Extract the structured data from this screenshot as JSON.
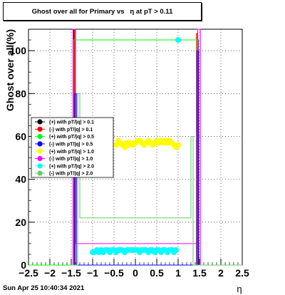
{
  "title": "Ghost over all for Primary vs   η at pT > 0.11",
  "timestamp": "Sun Apr 25 10:40:34 2021",
  "chart_data": {
    "type": "scatter",
    "xlabel": "η",
    "ylabel": "Ghost over all(%)",
    "xlim": [
      -2.5,
      2.5
    ],
    "ylim": [
      0,
      110
    ],
    "xticks": [
      "−2.5",
      "−2",
      "−1.5",
      "−1",
      "−0.5",
      "0",
      "0.5",
      "1",
      "1.5",
      "2",
      "2.5"
    ],
    "xtick_values": [
      -2.5,
      -2,
      -1.5,
      -1,
      -0.5,
      0,
      0.5,
      1,
      1.5,
      2,
      2.5
    ],
    "yticks": [
      "0",
      "20",
      "40",
      "60",
      "80",
      "100"
    ],
    "ytick_values": [
      0,
      20,
      40,
      60,
      80,
      100
    ],
    "grid": true,
    "legend_position": "left-middle",
    "series": [
      {
        "name": "(+) with pT/|q| > 0.1",
        "color": "#000000",
        "style": "step",
        "points": [
          [
            -1.5,
            0
          ],
          [
            -1.45,
            0
          ],
          [
            -1.45,
            110
          ],
          [
            -1.43,
            110
          ],
          [
            -1.43,
            0
          ],
          [
            1.45,
            0
          ],
          [
            1.45,
            105
          ],
          [
            1.47,
            105
          ],
          [
            1.47,
            0
          ],
          [
            2.5,
            0
          ]
        ]
      },
      {
        "name": "(-) with pT/|q| > 0.1",
        "color": "#ff0000",
        "style": "step",
        "points": [
          [
            -1.5,
            0
          ],
          [
            -1.43,
            0
          ],
          [
            -1.43,
            110
          ],
          [
            -1.41,
            110
          ],
          [
            -1.41,
            0
          ],
          [
            1.43,
            0
          ],
          [
            1.43,
            108
          ],
          [
            1.45,
            108
          ],
          [
            1.45,
            0
          ],
          [
            2.5,
            0
          ]
        ]
      },
      {
        "name": "(+) with pT/|q| > 0.5",
        "color": "#00ff00",
        "style": "step",
        "points": [
          [
            -2.5,
            0
          ],
          [
            -1.45,
            0
          ],
          [
            -1.45,
            105
          ],
          [
            1.45,
            105
          ],
          [
            1.45,
            0
          ],
          [
            2.5,
            0
          ]
        ]
      },
      {
        "name": "(-) with pT/|q| > 0.5",
        "color": "#0000ff",
        "style": "step",
        "points": [
          [
            -1.5,
            0
          ],
          [
            -1.42,
            0
          ],
          [
            -1.42,
            80
          ],
          [
            -1.38,
            80
          ],
          [
            -1.38,
            0
          ],
          [
            1.44,
            0
          ],
          [
            1.44,
            100
          ],
          [
            1.48,
            100
          ],
          [
            1.48,
            0
          ],
          [
            2.5,
            0
          ]
        ]
      },
      {
        "name": "(+) with pT/|q| > 1.0",
        "color": "#ffff00",
        "style": "markers",
        "points": [
          [
            -0.45,
            56
          ],
          [
            -0.4,
            58
          ],
          [
            -0.35,
            57
          ],
          [
            -0.3,
            56
          ],
          [
            -0.25,
            55
          ],
          [
            -0.2,
            57
          ],
          [
            -0.15,
            56
          ],
          [
            -0.1,
            57
          ],
          [
            -0.05,
            56
          ],
          [
            0,
            57
          ],
          [
            0.05,
            58
          ],
          [
            0.1,
            58
          ],
          [
            0.15,
            57
          ],
          [
            0.2,
            56
          ],
          [
            0.25,
            57
          ],
          [
            0.3,
            58
          ],
          [
            0.35,
            57
          ],
          [
            0.4,
            56
          ],
          [
            0.45,
            57
          ],
          [
            0.5,
            58
          ],
          [
            0.55,
            57
          ],
          [
            0.6,
            58
          ],
          [
            0.65,
            57
          ],
          [
            0.7,
            58
          ],
          [
            0.75,
            57
          ],
          [
            0.8,
            58
          ],
          [
            0.85,
            57
          ],
          [
            0.9,
            56
          ],
          [
            0.95,
            55
          ],
          [
            1.0,
            56
          ]
        ]
      },
      {
        "name": "(-) with pT/|q| > 1.0",
        "color": "#ff00ff",
        "style": "step",
        "points": [
          [
            -1.5,
            0
          ],
          [
            -1.46,
            0
          ],
          [
            -1.46,
            110
          ],
          [
            -1.4,
            110
          ],
          [
            -1.4,
            10
          ],
          [
            1.46,
            10
          ],
          [
            1.46,
            110
          ],
          [
            1.52,
            110
          ],
          [
            1.52,
            0
          ],
          [
            2.5,
            0
          ]
        ]
      },
      {
        "name": "(+) with pT/|q| > 2.0",
        "color": "#00ffff",
        "style": "markers",
        "points": [
          [
            -1.0,
            6
          ],
          [
            -0.95,
            6
          ],
          [
            -0.9,
            7
          ],
          [
            -0.85,
            6
          ],
          [
            -0.8,
            7
          ],
          [
            -0.75,
            6
          ],
          [
            -0.7,
            7
          ],
          [
            -0.65,
            7
          ],
          [
            -0.6,
            6
          ],
          [
            -0.55,
            7
          ],
          [
            -0.5,
            7
          ],
          [
            -0.45,
            6
          ],
          [
            -0.4,
            7
          ],
          [
            -0.35,
            7
          ],
          [
            -0.3,
            7
          ],
          [
            -0.25,
            6
          ],
          [
            -0.2,
            7
          ],
          [
            -0.15,
            7
          ],
          [
            -0.1,
            7
          ],
          [
            -0.05,
            7
          ],
          [
            0,
            7
          ],
          [
            0.05,
            7
          ],
          [
            0.1,
            6
          ],
          [
            0.15,
            7
          ],
          [
            0.2,
            7
          ],
          [
            0.25,
            7
          ],
          [
            0.3,
            6
          ],
          [
            0.35,
            7
          ],
          [
            0.4,
            7
          ],
          [
            0.45,
            6
          ],
          [
            0.5,
            7
          ],
          [
            0.55,
            7
          ],
          [
            0.6,
            6
          ],
          [
            0.65,
            7
          ],
          [
            0.7,
            7
          ],
          [
            0.75,
            6
          ],
          [
            0.8,
            7
          ],
          [
            0.85,
            7
          ],
          [
            0.9,
            6
          ],
          [
            0.95,
            7
          ],
          [
            1.0,
            105
          ]
        ]
      },
      {
        "name": "(-) with pT/|q| > 2.0",
        "color": "#66cc66",
        "style": "step",
        "points": [
          [
            -1.5,
            0
          ],
          [
            -1.35,
            0
          ],
          [
            -1.35,
            80
          ],
          [
            -1.3,
            80
          ],
          [
            -1.3,
            22
          ],
          [
            1.3,
            22
          ],
          [
            1.3,
            60
          ],
          [
            1.35,
            60
          ],
          [
            1.35,
            0
          ],
          [
            2.5,
            0
          ]
        ]
      }
    ]
  }
}
